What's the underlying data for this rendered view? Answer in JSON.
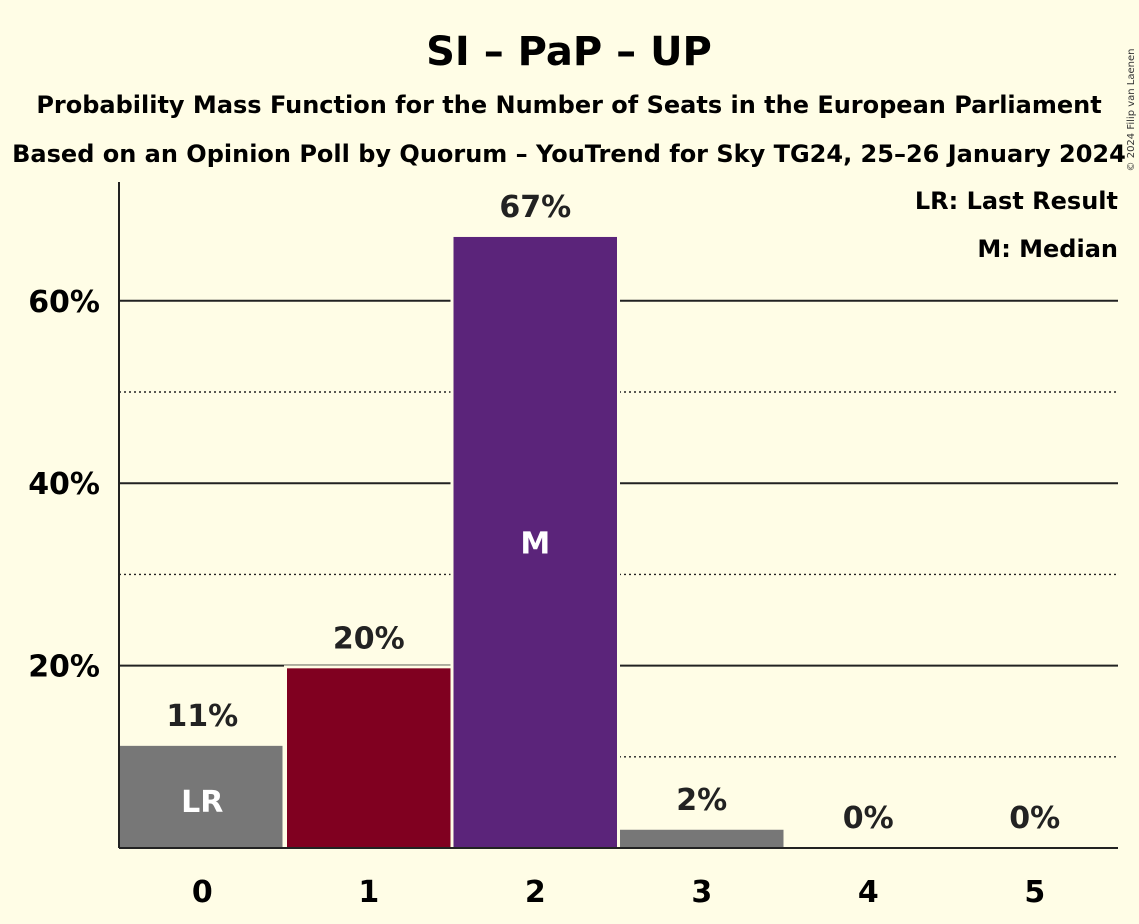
{
  "chart_data": {
    "type": "bar",
    "title": "SI – PaP – UP",
    "subtitle": "Probability Mass Function for the Number of Seats in the European Parliament",
    "subtitle2": "Based on an Opinion Poll by Quorum – YouTrend for Sky TG24, 25–26 January 2024",
    "categories": [
      "0",
      "1",
      "2",
      "3",
      "4",
      "5"
    ],
    "values": [
      11.2,
      19.7,
      67.0,
      2.0,
      0.0,
      0.0
    ],
    "value_labels": [
      "11%",
      "20%",
      "67%",
      "2%",
      "0%",
      "0%"
    ],
    "bar_colors": [
      "#777777",
      "#800020",
      "#5b247a",
      "#777777",
      "#777777",
      "#777777"
    ],
    "inner_labels": [
      "LR",
      "",
      "M",
      "",
      "",
      ""
    ],
    "y_ticks": [
      {
        "value": 20,
        "label": "20%"
      },
      {
        "value": 40,
        "label": "40%"
      },
      {
        "value": 60,
        "label": "60%"
      }
    ],
    "y_minor_gridlines": [
      10,
      30,
      50
    ],
    "ylim": [
      0,
      73
    ],
    "legend_placement": "top-right",
    "legend": [
      "LR: Last Result",
      "M: Median"
    ],
    "copyright": "© 2024 Filip van Laenen"
  }
}
